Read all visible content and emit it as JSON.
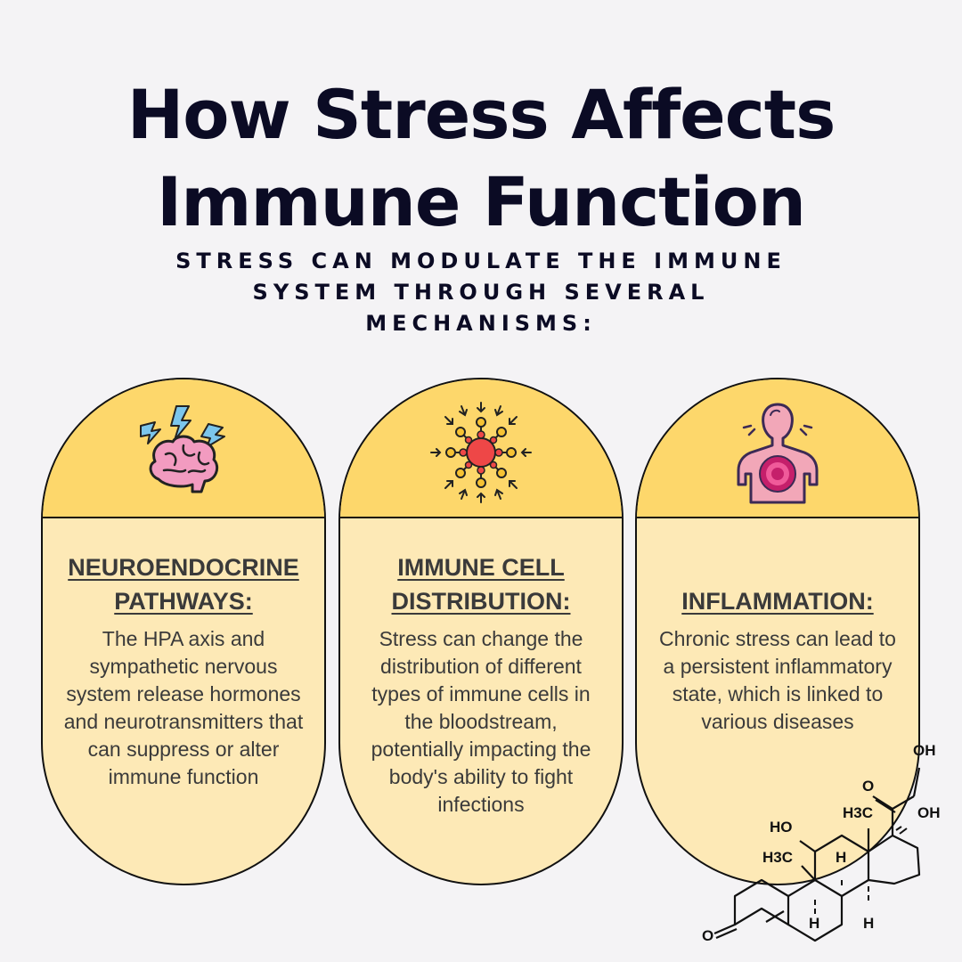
{
  "title_line1": "How Stress Affects",
  "title_line2": "Immune Function",
  "subtitle": "STRESS CAN MODULATE THE IMMUNE SYSTEM THROUGH SEVERAL MECHANISMS:",
  "cards": [
    {
      "icon": "brain-lightning-icon",
      "heading_line1": "NEUROENDOCRINE",
      "heading_line2": "PATHWAYS:",
      "body": "The HPA axis and sympathetic nervous system release hormones and neurotransmitters that can suppress or alter immune function"
    },
    {
      "icon": "virus-antibody-icon",
      "heading_line1": "IMMUNE CELL",
      "heading_line2": "DISTRIBUTION:",
      "body": "Stress can change the distribution of different types of immune cells in the bloodstream, potentially impacting the body's ability to fight infections"
    },
    {
      "icon": "inflamed-body-icon",
      "heading": "INFLAMMATION:",
      "body": "Chronic stress can lead to a persistent inflammatory state, which is linked to various diseases"
    }
  ],
  "molecule": {
    "icon": "cortisol-molecule-icon",
    "labels": {
      "oh_top": "OH",
      "oh_right": "OH",
      "o_ketone": "O",
      "ho_left": "HO",
      "h3c_upper": "H3C",
      "h3c_lower": "H3C",
      "h_a": "H",
      "h_b": "H",
      "h_c": "H",
      "o_bottom": "O"
    }
  },
  "colors": {
    "background": "#f4f3f5",
    "card_top": "#fdd76b",
    "card_body": "#fde9b6",
    "title": "#0b0b24",
    "body_text": "#3a3a3a"
  }
}
